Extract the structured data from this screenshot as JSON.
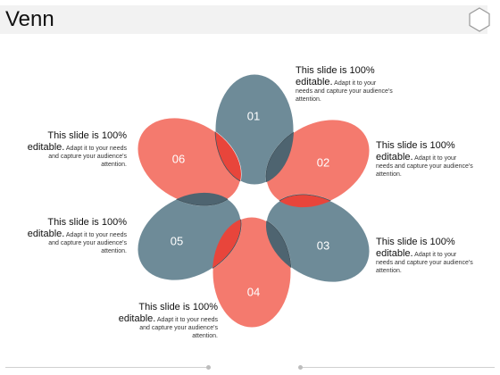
{
  "page_title": "Venn",
  "petals": [
    {
      "label": "01",
      "color": "#6e8b98"
    },
    {
      "label": "02",
      "color": "#f47a6e"
    },
    {
      "label": "03",
      "color": "#6e8b98"
    },
    {
      "label": "04",
      "color": "#f47a6e"
    },
    {
      "label": "05",
      "color": "#6e8b98"
    },
    {
      "label": "06",
      "color": "#f47a6e"
    }
  ],
  "overlap_colors": {
    "dark": "#4e6470",
    "red": "#e8453b"
  },
  "captions": [
    {
      "lead": "This slide is 100% editable.",
      "body": "Adapt it to your needs and capture your audience's attention."
    },
    {
      "lead": "This slide is 100% editable.",
      "body": "Adapt it to your needs and capture your audience's attention."
    },
    {
      "lead": "This slide is 100% editable.",
      "body": "Adapt it to your needs and capture your audience's attention."
    },
    {
      "lead": "This slide is 100% editable.",
      "body": "Adapt it to your needs and capture your audience's attention."
    },
    {
      "lead": "This slide is 100% editable.",
      "body": "Adapt it to your needs and capture your audience's attention."
    },
    {
      "lead": "This slide is 100% editable.",
      "body": "Adapt it to your needs and capture your audience's attention."
    }
  ]
}
